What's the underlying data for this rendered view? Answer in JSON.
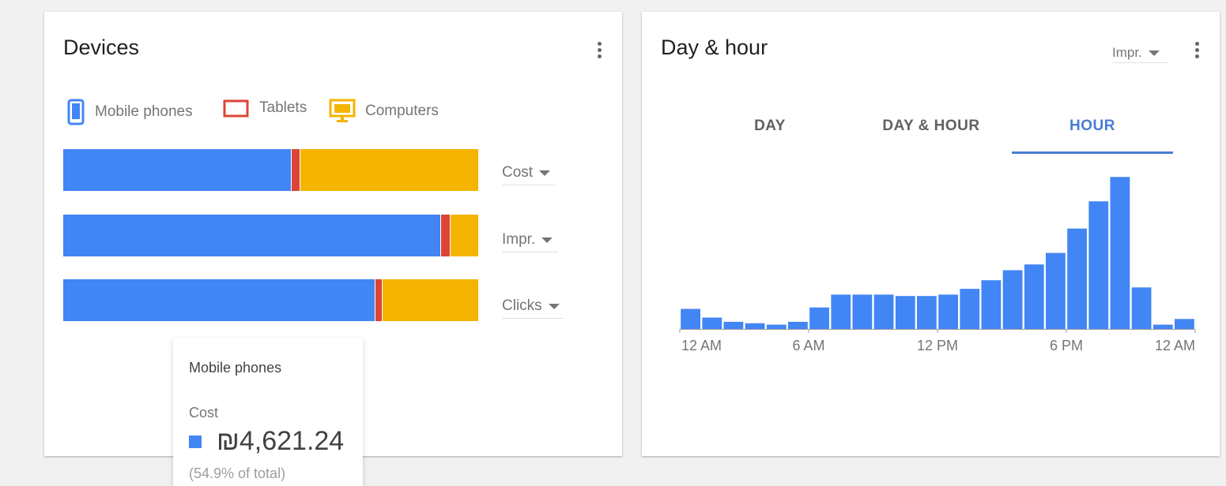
{
  "devices": {
    "title": "Devices",
    "legend": [
      {
        "label": "Mobile phones",
        "icon": "mobile-phone-icon",
        "color": "#4285f4"
      },
      {
        "label": "Tablets",
        "icon": "tablet-icon",
        "color": "#db4437"
      },
      {
        "label": "Computers",
        "icon": "computer-icon",
        "color": "#f4b400"
      }
    ],
    "rows": [
      {
        "metric": "Cost",
        "shares": [
          0.549,
          0.023,
          0.428
        ]
      },
      {
        "metric": "Impr.",
        "shares": [
          0.908,
          0.025,
          0.067
        ]
      },
      {
        "metric": "Clicks",
        "shares": [
          0.75,
          0.02,
          0.23
        ]
      }
    ],
    "tooltip": {
      "name": "Mobile phones",
      "metric": "Cost",
      "value": "₪4,621.24",
      "share": "(54.9% of total)"
    }
  },
  "dayhour": {
    "title": "Day & hour",
    "metric_select": "Impr.",
    "tabs": [
      {
        "label": "DAY",
        "active": false
      },
      {
        "label": "DAY & HOUR",
        "active": false
      },
      {
        "label": "HOUR",
        "active": true
      }
    ]
  },
  "chart_data": {
    "type": "bar",
    "categories": [
      "0",
      "1",
      "2",
      "3",
      "4",
      "5",
      "6",
      "7",
      "8",
      "9",
      "10",
      "11",
      "12",
      "13",
      "14",
      "15",
      "16",
      "17",
      "18",
      "19",
      "20",
      "21",
      "22",
      "23"
    ],
    "values": [
      14,
      8,
      5,
      4,
      3,
      5,
      15,
      24,
      24,
      24,
      23,
      23,
      24,
      28,
      34,
      41,
      45,
      53,
      70,
      89,
      106,
      29,
      3,
      7
    ],
    "tick_labels": [
      "12 AM",
      "6 AM",
      "12 PM",
      "6 PM",
      "12 AM"
    ],
    "tick_hours": [
      0,
      6,
      12,
      18,
      24
    ],
    "ylim": [
      0,
      110
    ],
    "color": "#4285f4"
  }
}
